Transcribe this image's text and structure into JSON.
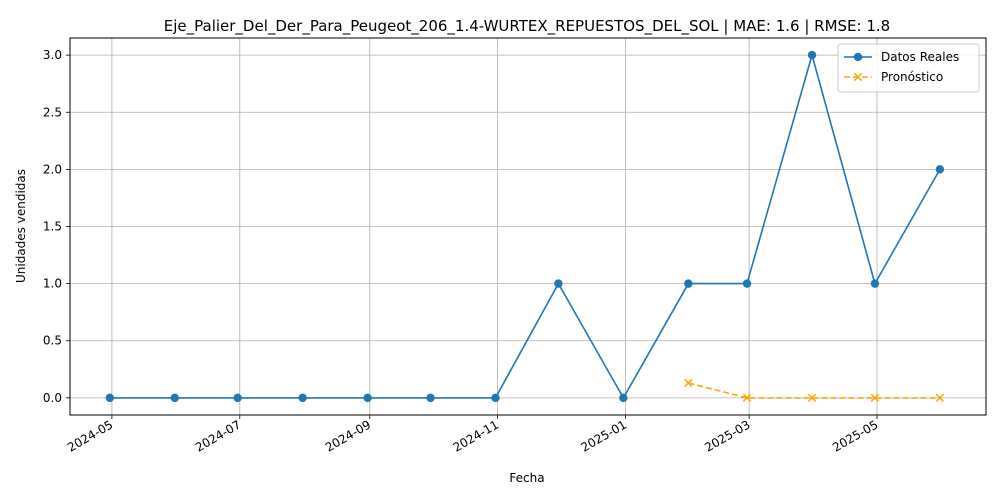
{
  "chart_data": {
    "type": "line",
    "title": "Eje_Palier_Del_Der_Para_Peugeot_206_1.4-WURTEX_REPUESTOS_DEL_SOL | MAE: 1.6 | RMSE: 1.8",
    "xlabel": "Fecha",
    "ylabel": "Unidades vendidas",
    "xlim": [
      "2024-04-11",
      "2025-06-22"
    ],
    "ylim": [
      -0.15,
      3.15
    ],
    "x_ticks": [
      "2024-05",
      "2024-07",
      "2024-09",
      "2024-11",
      "2025-01",
      "2025-03",
      "2025-05"
    ],
    "x_tick_dates": [
      "2024-05-01",
      "2024-07-01",
      "2024-09-01",
      "2024-11-01",
      "2025-01-01",
      "2025-03-01",
      "2025-05-01"
    ],
    "y_ticks": [
      "0.0",
      "0.5",
      "1.0",
      "1.5",
      "2.0",
      "2.5",
      "3.0"
    ],
    "y_tick_values": [
      0,
      0.5,
      1,
      1.5,
      2,
      2.5,
      3
    ],
    "grid": true,
    "legend_position": "top-right",
    "series": [
      {
        "name": "Datos Reales",
        "color": "#1f77b4",
        "style": "solid",
        "marker": "circle",
        "x": [
          "2024-04-30",
          "2024-05-31",
          "2024-06-30",
          "2024-07-31",
          "2024-08-31",
          "2024-09-30",
          "2024-10-31",
          "2024-11-30",
          "2024-12-31",
          "2025-01-31",
          "2025-02-28",
          "2025-03-31",
          "2025-04-30",
          "2025-05-31"
        ],
        "values": [
          0,
          0,
          0,
          0,
          0,
          0,
          0,
          1,
          0,
          1,
          1,
          3,
          1,
          2
        ]
      },
      {
        "name": "Pronóstico",
        "color": "#ffa500",
        "style": "dashed",
        "marker": "x",
        "x": [
          "2025-01-31",
          "2025-02-28",
          "2025-03-31",
          "2025-04-30",
          "2025-05-31"
        ],
        "values": [
          0.13,
          0,
          0,
          0,
          0
        ]
      }
    ]
  }
}
